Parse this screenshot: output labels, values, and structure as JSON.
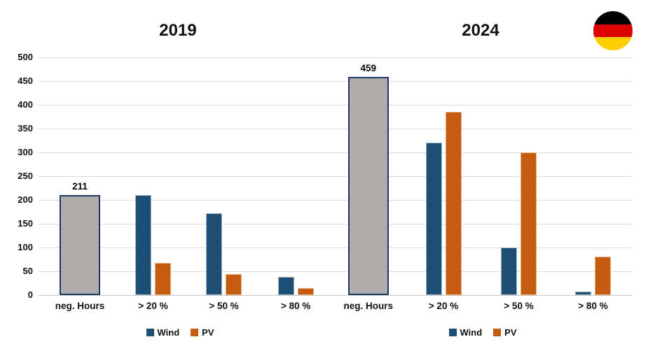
{
  "chart_data": {
    "type": "bar",
    "title": "",
    "xlabel": "",
    "ylabel": "",
    "ylim": [
      0,
      500
    ],
    "yticks": [
      0,
      50,
      100,
      150,
      200,
      250,
      300,
      350,
      400,
      450,
      500
    ],
    "grid": true,
    "legend_position": "bottom",
    "colors": {
      "wind": "#1f4e74",
      "pv": "#c55a11",
      "neg_hours_fill": "#afacac",
      "neg_hours_border": "#1f3864",
      "gridline": "#dcdcdc"
    },
    "panels": [
      {
        "title": "2019",
        "categories": [
          "neg. Hours",
          "> 20 %",
          "> 50 %",
          "> 80 %"
        ],
        "neg_hours": {
          "category": "neg. Hours",
          "value": 211,
          "label": "211"
        },
        "series": [
          {
            "name": "Wind",
            "values": [
              210,
              172,
              38
            ]
          },
          {
            "name": "PV",
            "values": [
              68,
              44,
              15
            ]
          }
        ],
        "legend": [
          {
            "label": "Wind",
            "color": "#1f4e74"
          },
          {
            "label": "PV",
            "color": "#c55a11"
          }
        ]
      },
      {
        "title": "2024",
        "categories": [
          "neg. Hours",
          "> 20 %",
          "> 50 %",
          "> 80 %"
        ],
        "neg_hours": {
          "category": "neg. Hours",
          "value": 459,
          "label": "459"
        },
        "series": [
          {
            "name": "Wind",
            "values": [
              320,
              100,
              8
            ]
          },
          {
            "name": "PV",
            "values": [
              385,
              300,
              81
            ]
          }
        ],
        "legend": [
          {
            "label": "Wind",
            "color": "#1f4e74"
          },
          {
            "label": "PV",
            "color": "#c55a11"
          }
        ]
      }
    ],
    "flag": {
      "icon": "germany-flag-icon",
      "stripe_colors": [
        "#000000",
        "#dd0000",
        "#ffce00"
      ]
    }
  }
}
